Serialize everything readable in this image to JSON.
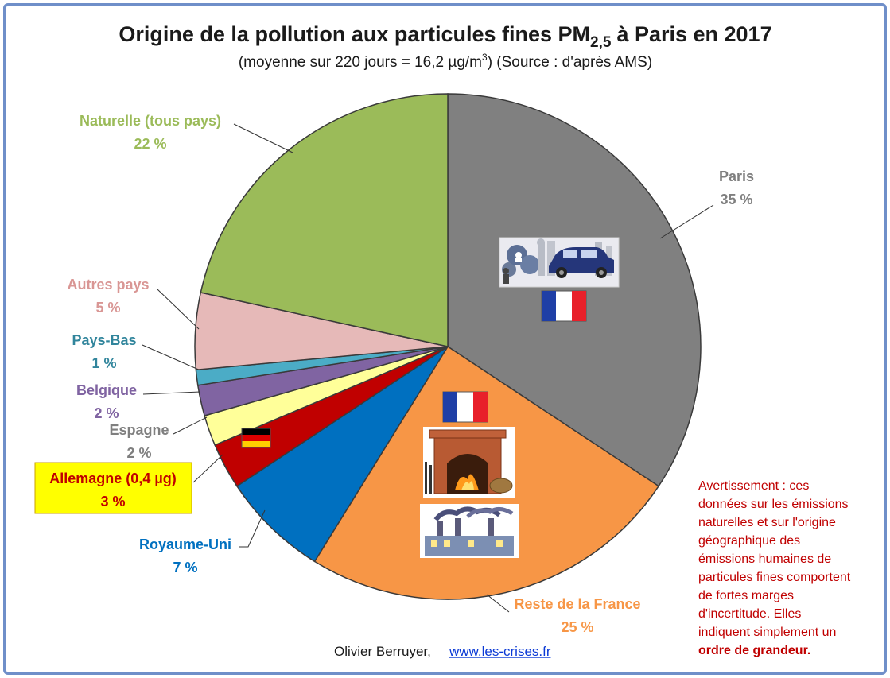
{
  "chart_data": {
    "type": "pie",
    "title_main": "Origine de la pollution aux particules fines PM",
    "title_sub": "2,5",
    "title_tail": "à Paris en 2017",
    "subtitle_pre": "(moyenne sur 220 jours = 16,2 µg/m",
    "subtitle_sup": "3",
    "subtitle_post": ") (Source : d'après AMS)",
    "slices": [
      {
        "label": "Paris",
        "value": 35,
        "pct": "35 %",
        "color": "#808080",
        "text_color": "#7f7f7f"
      },
      {
        "label": "Reste de la France",
        "value": 25,
        "pct": "25 %",
        "color": "#f79646",
        "text_color": "#f79646"
      },
      {
        "label": "Royaume-Uni",
        "value": 7,
        "pct": "7 %",
        "color": "#0070c0",
        "text_color": "#0070c0"
      },
      {
        "label": "Allemagne (0,4 µg)",
        "value": 3,
        "pct": "3 %",
        "color": "#c00000",
        "text_color": "#c00000"
      },
      {
        "label": "Espagne",
        "value": 2,
        "pct": "2 %",
        "color": "#ffff99",
        "text_color": "#7f7f7f"
      },
      {
        "label": "Belgique",
        "value": 2,
        "pct": "2 %",
        "color": "#8064a2",
        "text_color": "#8064a2"
      },
      {
        "label": "Pays-Bas",
        "value": 1,
        "pct": "1 %",
        "color": "#4bacc6",
        "text_color": "#31859c"
      },
      {
        "label": "Autres pays",
        "value": 5,
        "pct": "5 %",
        "color": "#e6b9b8",
        "text_color": "#d99694"
      },
      {
        "label": "Naturelle (tous pays)",
        "value": 22,
        "pct": "22 %",
        "color": "#9bbb59",
        "text_color": "#9bbb59"
      }
    ]
  },
  "warning": {
    "lines": [
      "Avertissement : ces",
      "données sur les émissions",
      "naturelles et sur l'origine",
      "géographique des",
      "émissions humaines de",
      "particules fines comportent",
      "de fortes marges",
      "d'incertitude. Elles",
      "indiquent simplement un"
    ],
    "bold_line": "ordre de grandeur."
  },
  "credit": {
    "author": "Olivier Berruyer,",
    "link": "www.les-crises.fr"
  },
  "colors": {
    "frame": "#6f8fc9",
    "allemagne_box_bg": "#ffff00",
    "warning_text": "#c00000"
  },
  "icons": [
    "car-pollution-icon",
    "france-flag-icon",
    "fireplace-icon",
    "factory-icon",
    "germany-flag-icon"
  ]
}
